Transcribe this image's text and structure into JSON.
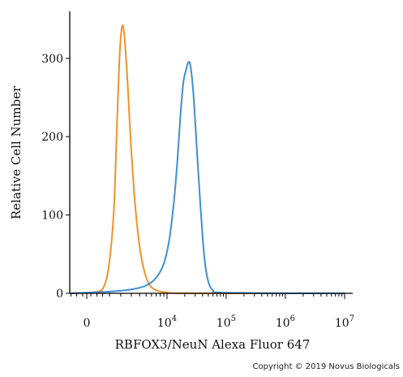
{
  "chart_data": {
    "type": "line",
    "title": "",
    "xlabel": "RBFOX3/NeuN Alexa Fluor 647",
    "ylabel": "Relative Cell Number",
    "x_scale": "biexponential",
    "yticks": [
      0,
      100,
      200,
      300
    ],
    "ylim": [
      0,
      360
    ],
    "xticks": [
      {
        "base": "0",
        "exp": ""
      },
      {
        "base": "10",
        "exp": "4"
      },
      {
        "base": "10",
        "exp": "5"
      },
      {
        "base": "10",
        "exp": "6"
      },
      {
        "base": "10",
        "exp": "7"
      }
    ],
    "series": [
      {
        "color": "#f0922b",
        "x": [
          -1000,
          500,
          900,
          1200,
          1500,
          1700,
          1900,
          2100,
          2300,
          2600,
          2900,
          3300,
          3800,
          4500,
          5500,
          7000,
          10000,
          20000,
          1000000,
          10000000
        ],
        "y": [
          0,
          2,
          10,
          40,
          110,
          210,
          300,
          340,
          330,
          270,
          200,
          130,
          75,
          35,
          12,
          4,
          1,
          0,
          0,
          0
        ]
      },
      {
        "color": "#3f8fd2",
        "x": [
          -1000,
          1000,
          3000,
          5000,
          7000,
          9000,
          11000,
          13000,
          15000,
          17000,
          19000,
          21000,
          23000,
          25000,
          28000,
          32000,
          37000,
          43000,
          50000,
          60000,
          80000,
          1000000,
          10000000
        ],
        "y": [
          0,
          2,
          5,
          10,
          20,
          38,
          70,
          115,
          170,
          230,
          270,
          285,
          295,
          290,
          255,
          185,
          110,
          45,
          15,
          4,
          1,
          0,
          0
        ]
      }
    ]
  },
  "copyright": "Copyright © 2019 Novus Biologicals"
}
